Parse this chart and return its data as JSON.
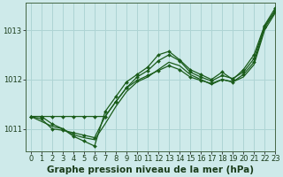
{
  "background_color": "#ceeaea",
  "grid_color": "#aed4d4",
  "line_color": "#1a5c1a",
  "marker_color": "#1a5c1a",
  "title": "Graphe pression niveau de la mer (hPa)",
  "xlim": [
    -0.5,
    23
  ],
  "ylim": [
    1010.55,
    1013.55
  ],
  "yticks": [
    1011,
    1012,
    1013
  ],
  "xticks": [
    0,
    1,
    2,
    3,
    4,
    5,
    6,
    7,
    8,
    9,
    10,
    11,
    12,
    13,
    14,
    15,
    16,
    17,
    18,
    19,
    20,
    21,
    22,
    23
  ],
  "series": [
    {
      "y": [
        1011.25,
        1011.25,
        1011.1,
        1011.0,
        1010.85,
        1010.75,
        1010.65,
        1011.35,
        1011.65,
        1011.95,
        1012.1,
        1012.25,
        1012.5,
        1012.57,
        1012.4,
        1012.2,
        1012.1,
        1012.0,
        1012.15,
        1012.0,
        1012.2,
        1012.5,
        1013.1,
        1013.45
      ],
      "marker": true,
      "lw": 0.9
    },
    {
      "y": [
        1011.25,
        1011.15,
        1011.05,
        1011.0,
        1010.88,
        1010.82,
        1010.78,
        1011.1,
        1011.45,
        1011.75,
        1011.95,
        1012.05,
        1012.2,
        1012.35,
        1012.28,
        1012.1,
        1012.0,
        1011.9,
        1012.0,
        1011.95,
        1012.05,
        1012.3,
        1013.0,
        1013.35
      ],
      "marker": false,
      "lw": 0.9
    },
    {
      "y": [
        1011.25,
        1011.2,
        1011.0,
        1010.97,
        1010.92,
        1010.87,
        1010.82,
        1011.25,
        1011.55,
        1011.83,
        1012.05,
        1012.18,
        1012.38,
        1012.5,
        1012.38,
        1012.15,
        1012.05,
        1011.97,
        1012.08,
        1012.02,
        1012.15,
        1012.42,
        1013.08,
        1013.4
      ],
      "marker": true,
      "lw": 0.9
    },
    {
      "y": [
        1011.25,
        1011.25,
        1011.25,
        1011.25,
        1011.25,
        1011.25,
        1011.25,
        1011.25,
        1011.55,
        1011.83,
        1011.98,
        1012.08,
        1012.18,
        1012.28,
        1012.2,
        1012.05,
        1011.98,
        1011.92,
        1012.0,
        1011.95,
        1012.1,
        1012.35,
        1013.05,
        1013.38
      ],
      "marker": true,
      "lw": 0.9
    }
  ],
  "title_fontsize": 7.5,
  "tick_fontsize": 6.0,
  "ylabel_fontsize": 7
}
